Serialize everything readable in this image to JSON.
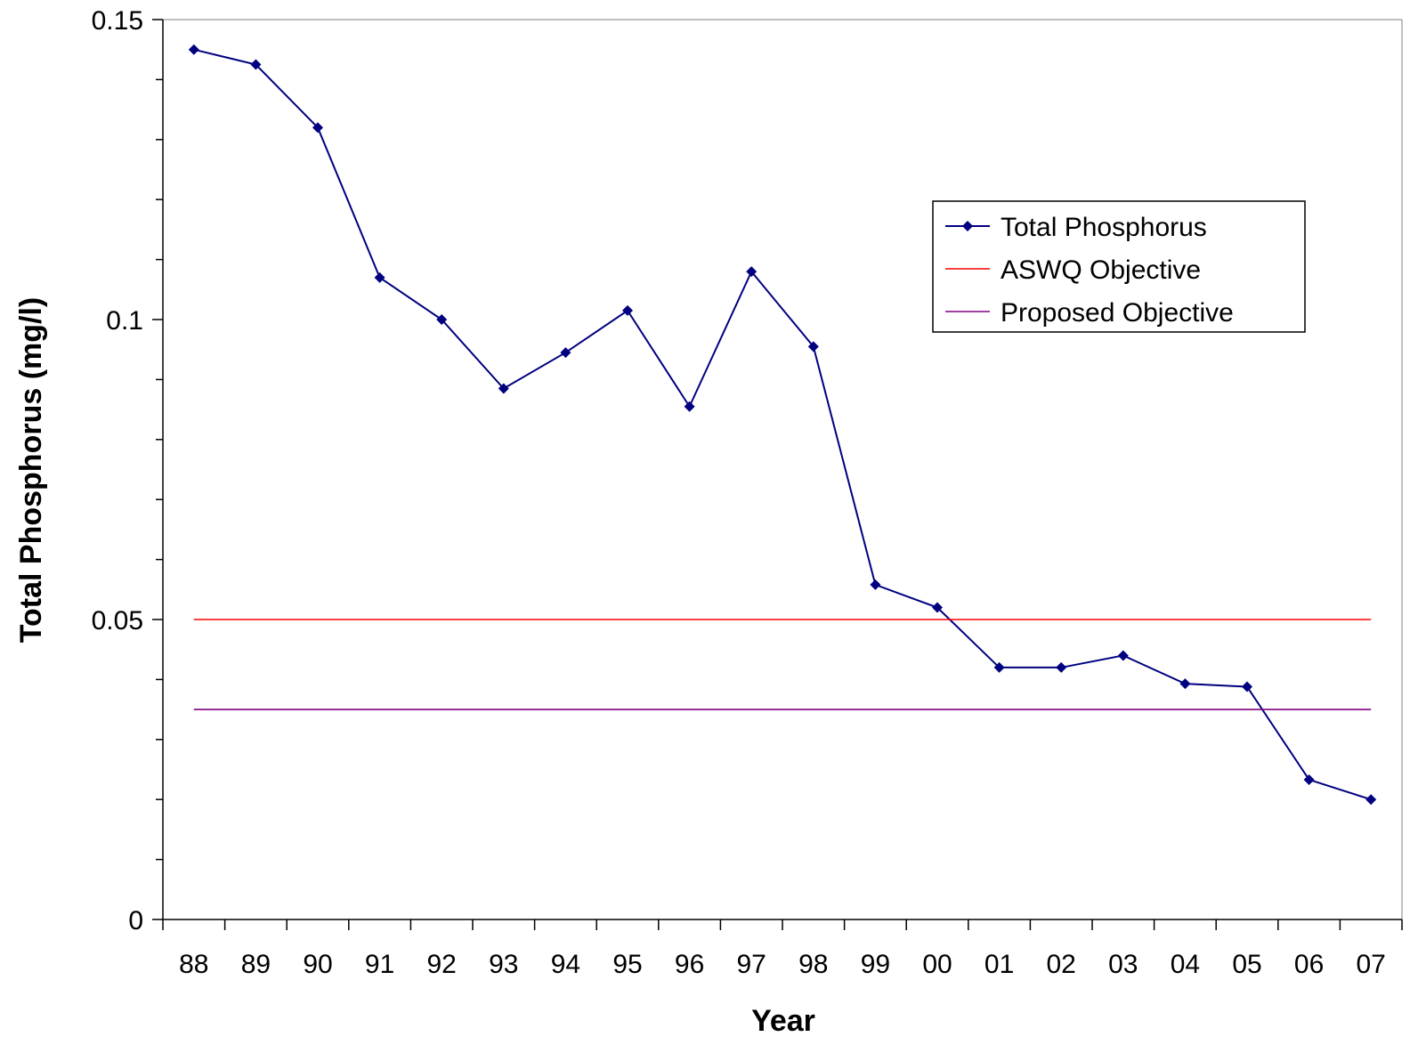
{
  "chart_data": {
    "type": "line",
    "title": "",
    "xlabel": "Year",
    "ylabel": "Total Phosphorus (mg/l)",
    "categories": [
      "88",
      "89",
      "90",
      "91",
      "92",
      "93",
      "94",
      "95",
      "96",
      "97",
      "98",
      "99",
      "00",
      "01",
      "02",
      "03",
      "04",
      "05",
      "06",
      "07"
    ],
    "ylim": [
      0,
      0.15
    ],
    "y_ticks": [
      "0",
      "0.05",
      "0.1",
      "0.15"
    ],
    "grid": false,
    "legend_position": "top-right",
    "series": [
      {
        "name": "Total Phosphorus",
        "color": "#000080",
        "marker": "diamond",
        "values": [
          0.145,
          0.1425,
          0.132,
          0.107,
          0.1,
          0.0885,
          0.0945,
          0.1015,
          0.0855,
          0.108,
          0.0955,
          0.0558,
          0.052,
          0.042,
          0.042,
          0.044,
          0.0393,
          0.0388,
          0.0233,
          0.02
        ]
      },
      {
        "name": "ASWQ Objective",
        "color": "#ff0000",
        "marker": "none",
        "values": [
          0.05,
          0.05,
          0.05,
          0.05,
          0.05,
          0.05,
          0.05,
          0.05,
          0.05,
          0.05,
          0.05,
          0.05,
          0.05,
          0.05,
          0.05,
          0.05,
          0.05,
          0.05,
          0.05,
          0.05
        ]
      },
      {
        "name": "Proposed Objective",
        "color": "#800080",
        "marker": "none",
        "values": [
          0.035,
          0.035,
          0.035,
          0.035,
          0.035,
          0.035,
          0.035,
          0.035,
          0.035,
          0.035,
          0.035,
          0.035,
          0.035,
          0.035,
          0.035,
          0.035,
          0.035,
          0.035,
          0.035,
          0.035
        ]
      }
    ]
  }
}
